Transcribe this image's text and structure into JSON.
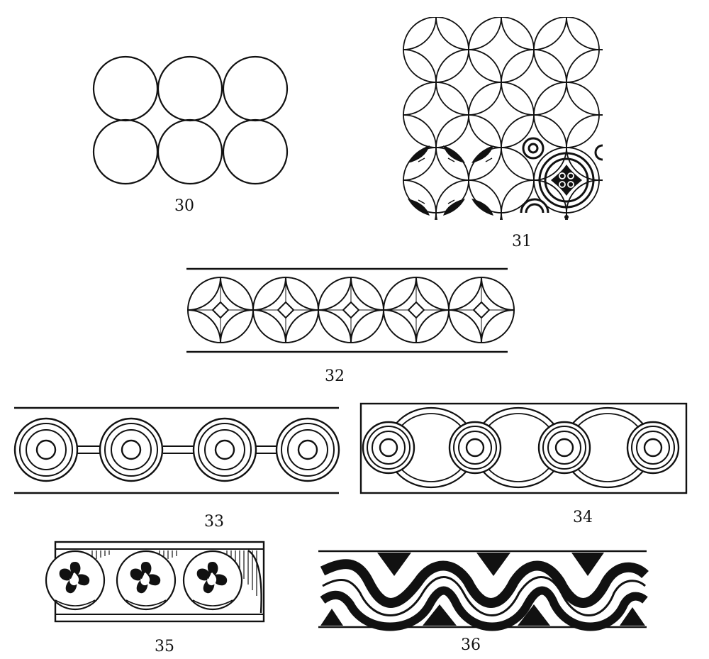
{
  "plate": {
    "ink_color": "#111111",
    "paper_color": "#ffffff"
  },
  "figures": [
    {
      "label": "30"
    },
    {
      "label": "31"
    },
    {
      "label": "32"
    },
    {
      "label": "33"
    },
    {
      "label": "34"
    },
    {
      "label": "35"
    },
    {
      "label": "36"
    }
  ]
}
